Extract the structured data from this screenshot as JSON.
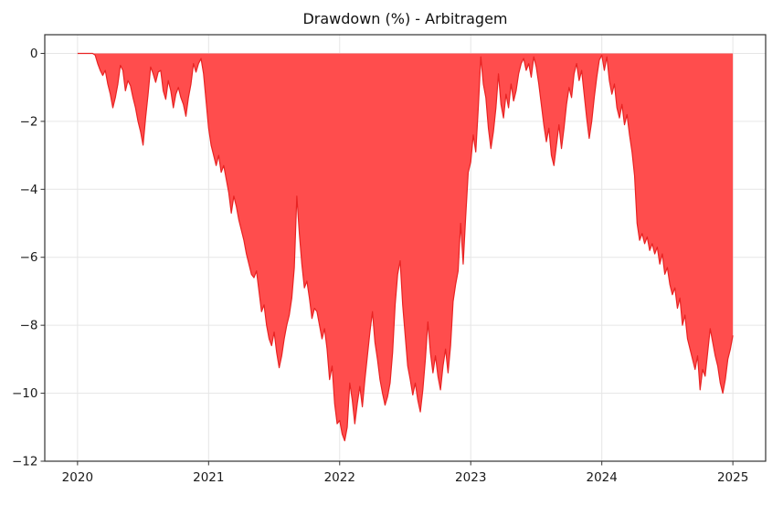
{
  "chart_data": {
    "type": "area",
    "title": "Drawdown (%) - Arbitragem",
    "series_name": "Drawdown (%)",
    "xlabel": "",
    "ylabel": "",
    "x_start_year": 2020.0,
    "x_step_years": 0.01923077,
    "baseline": 0,
    "xlim": [
      2019.75,
      2025.25
    ],
    "ylim": [
      -12,
      0.55
    ],
    "xticks": [
      2020,
      2021,
      2022,
      2023,
      2024,
      2025
    ],
    "xtick_labels": [
      "2020",
      "2021",
      "2022",
      "2023",
      "2024",
      "2025"
    ],
    "yticks": [
      0,
      -2,
      -4,
      -6,
      -8,
      -10,
      -12
    ],
    "ytick_labels": [
      "0",
      "−2",
      "−4",
      "−6",
      "−8",
      "−10",
      "−12"
    ],
    "grid": true,
    "legend": "none",
    "fill_color": "#ff4d4d",
    "line_color": "#e82323",
    "grid_color": "#e6e6e6",
    "spine_color": "#333333",
    "text_color": "#1a1a1a",
    "values": [
      0,
      0,
      0,
      0,
      0,
      0,
      0,
      -0.05,
      -0.3,
      -0.5,
      -0.65,
      -0.5,
      -0.9,
      -1.2,
      -1.6,
      -1.3,
      -0.9,
      -0.35,
      -0.5,
      -1.1,
      -0.8,
      -0.95,
      -1.3,
      -1.6,
      -2.0,
      -2.3,
      -2.7,
      -1.9,
      -1.2,
      -0.4,
      -0.6,
      -0.85,
      -0.55,
      -0.5,
      -1.1,
      -1.35,
      -0.8,
      -1.1,
      -1.6,
      -1.2,
      -1.0,
      -1.3,
      -1.5,
      -1.85,
      -1.3,
      -0.9,
      -0.3,
      -0.55,
      -0.3,
      -0.15,
      -0.6,
      -1.4,
      -2.2,
      -2.7,
      -3.0,
      -3.3,
      -3.0,
      -3.5,
      -3.3,
      -3.7,
      -4.1,
      -4.7,
      -4.2,
      -4.5,
      -4.9,
      -5.2,
      -5.5,
      -5.9,
      -6.2,
      -6.5,
      -6.6,
      -6.4,
      -7.0,
      -7.6,
      -7.4,
      -8.0,
      -8.4,
      -8.6,
      -8.2,
      -8.8,
      -9.25,
      -8.9,
      -8.4,
      -8.0,
      -7.7,
      -7.2,
      -6.3,
      -4.2,
      -5.3,
      -6.2,
      -6.9,
      -6.7,
      -7.2,
      -7.8,
      -7.5,
      -7.6,
      -8.0,
      -8.4,
      -8.1,
      -8.7,
      -9.6,
      -9.2,
      -10.3,
      -10.9,
      -10.8,
      -11.2,
      -11.4,
      -11.0,
      -9.7,
      -10.2,
      -10.9,
      -10.3,
      -9.8,
      -10.4,
      -9.6,
      -8.9,
      -8.2,
      -7.6,
      -8.5,
      -9.0,
      -9.6,
      -10.0,
      -10.35,
      -10.1,
      -9.7,
      -8.8,
      -7.4,
      -6.5,
      -6.1,
      -7.4,
      -8.3,
      -9.2,
      -9.6,
      -10.05,
      -9.7,
      -10.2,
      -10.55,
      -9.9,
      -9.0,
      -7.9,
      -8.8,
      -9.4,
      -8.9,
      -9.5,
      -9.9,
      -9.2,
      -8.7,
      -9.4,
      -8.6,
      -7.3,
      -6.8,
      -6.4,
      -5.0,
      -6.2,
      -4.8,
      -3.5,
      -3.2,
      -2.4,
      -2.9,
      -1.6,
      -0.1,
      -0.9,
      -1.3,
      -2.2,
      -2.8,
      -2.3,
      -1.6,
      -0.6,
      -1.5,
      -1.9,
      -1.2,
      -1.6,
      -0.9,
      -1.4,
      -1.1,
      -0.6,
      -0.3,
      -0.15,
      -0.5,
      -0.3,
      -0.7,
      -0.1,
      -0.4,
      -0.9,
      -1.5,
      -2.1,
      -2.6,
      -2.2,
      -3.0,
      -3.3,
      -2.7,
      -2.1,
      -2.8,
      -2.2,
      -1.5,
      -1.0,
      -1.3,
      -0.6,
      -0.3,
      -0.8,
      -0.5,
      -1.2,
      -1.9,
      -2.5,
      -2.0,
      -1.3,
      -0.7,
      -0.2,
      -0.05,
      -0.5,
      -0.1,
      -0.8,
      -1.2,
      -0.9,
      -1.6,
      -1.9,
      -1.5,
      -2.1,
      -1.8,
      -2.4,
      -2.9,
      -3.6,
      -5.0,
      -5.5,
      -5.3,
      -5.6,
      -5.4,
      -5.8,
      -5.6,
      -5.9,
      -5.7,
      -6.2,
      -5.9,
      -6.5,
      -6.3,
      -6.8,
      -7.1,
      -6.9,
      -7.5,
      -7.2,
      -8.0,
      -7.7,
      -8.4,
      -8.7,
      -9.0,
      -9.3,
      -8.9,
      -9.9,
      -9.3,
      -9.5,
      -8.8,
      -8.1,
      -8.5,
      -8.9,
      -9.2,
      -9.7,
      -10.0,
      -9.6,
      -9.0,
      -8.7,
      -8.3
    ]
  }
}
